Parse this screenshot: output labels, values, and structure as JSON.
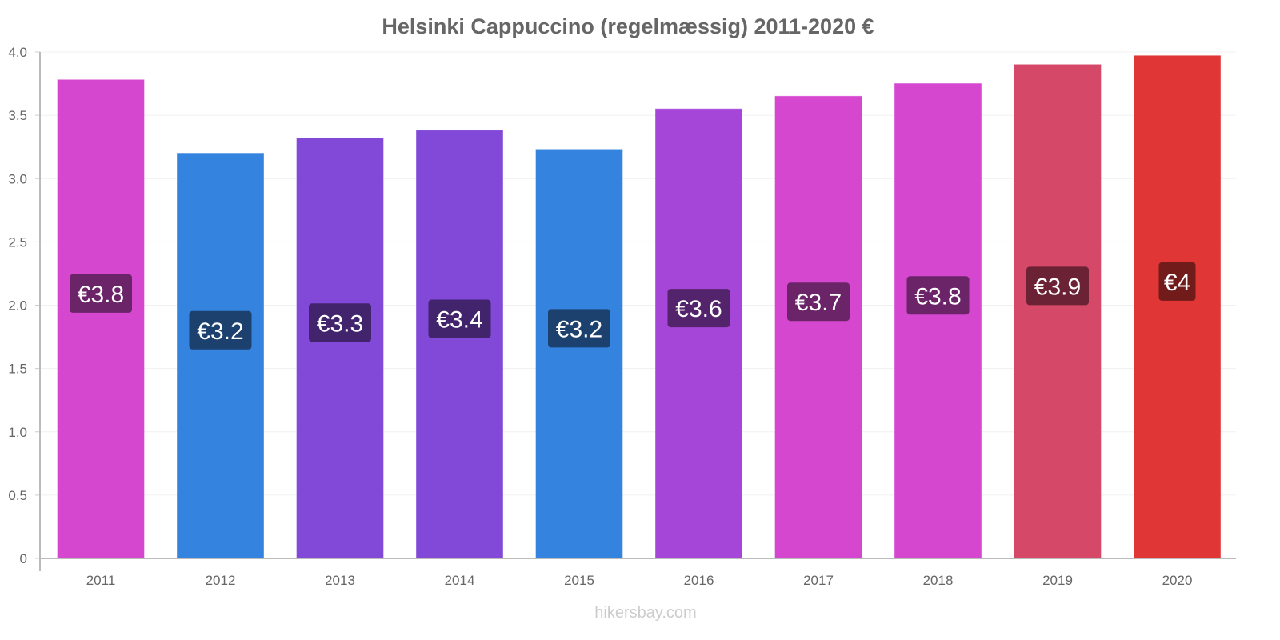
{
  "chart_data": {
    "type": "bar",
    "title": "Helsinki Cappuccino (regelmæssig) 2011-2020 €",
    "xlabel": "",
    "ylabel": "",
    "ylim": [
      0,
      4
    ],
    "yticks": [
      "0",
      "0.5",
      "1.0",
      "1.5",
      "2.0",
      "2.5",
      "3.0",
      "3.5",
      "4.0"
    ],
    "ytick_values": [
      0,
      0.5,
      1,
      1.5,
      2,
      2.5,
      3,
      3.5,
      4
    ],
    "grid": true,
    "categories": [
      "2011",
      "2012",
      "2013",
      "2014",
      "2015",
      "2016",
      "2017",
      "2018",
      "2019",
      "2020"
    ],
    "values": [
      3.78,
      3.2,
      3.32,
      3.38,
      3.23,
      3.55,
      3.65,
      3.75,
      3.9,
      3.97
    ],
    "data_labels": [
      "€3.8",
      "€3.2",
      "€3.3",
      "€3.4",
      "€3.2",
      "€3.6",
      "€3.7",
      "€3.8",
      "€3.9",
      "€4"
    ],
    "bar_colors": [
      "#d647d0",
      "#3483de",
      "#8249d8",
      "#8249d8",
      "#3483de",
      "#a646d8",
      "#d647d0",
      "#d647d0",
      "#d64868",
      "#e03636"
    ],
    "label_colors": [
      "#6b2468",
      "#1d416e",
      "#41246c",
      "#41246c",
      "#1d416e",
      "#53236c",
      "#6b2468",
      "#6b2468",
      "#6b2234",
      "#721b1b"
    ]
  },
  "watermark": "hikersbay.com"
}
